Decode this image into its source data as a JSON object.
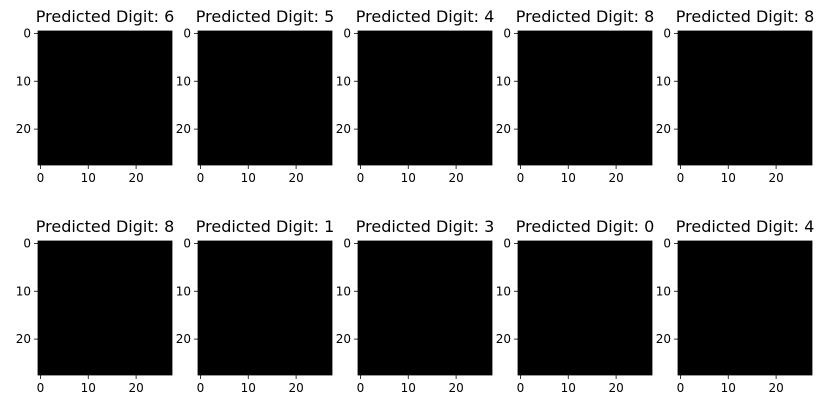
{
  "figure": {
    "background": "#ffffff",
    "image_background": "#000000",
    "digit_color": "#ffffff"
  },
  "chart_data": [
    {
      "type": "heatmap",
      "colormap": "gray",
      "image_size": [
        28,
        28
      ],
      "title": "Predicted Digit: 6",
      "prediction": 6,
      "xticks": [
        "0",
        "10",
        "20"
      ],
      "yticks": [
        "0",
        "10",
        "20"
      ],
      "xlim": [
        -0.5,
        27.5
      ],
      "ylim": [
        27.5,
        -0.5
      ]
    },
    {
      "type": "heatmap",
      "colormap": "gray",
      "image_size": [
        28,
        28
      ],
      "title": "Predicted Digit: 5",
      "prediction": 5,
      "xticks": [
        "0",
        "10",
        "20"
      ],
      "yticks": [
        "0",
        "10",
        "20"
      ],
      "xlim": [
        -0.5,
        27.5
      ],
      "ylim": [
        27.5,
        -0.5
      ]
    },
    {
      "type": "heatmap",
      "colormap": "gray",
      "image_size": [
        28,
        28
      ],
      "title": "Predicted Digit: 4",
      "prediction": 4,
      "xticks": [
        "0",
        "10",
        "20"
      ],
      "yticks": [
        "0",
        "10",
        "20"
      ],
      "xlim": [
        -0.5,
        27.5
      ],
      "ylim": [
        27.5,
        -0.5
      ]
    },
    {
      "type": "heatmap",
      "colormap": "gray",
      "image_size": [
        28,
        28
      ],
      "title": "Predicted Digit: 8",
      "prediction": 8,
      "xticks": [
        "0",
        "10",
        "20"
      ],
      "yticks": [
        "0",
        "10",
        "20"
      ],
      "xlim": [
        -0.5,
        27.5
      ],
      "ylim": [
        27.5,
        -0.5
      ]
    },
    {
      "type": "heatmap",
      "colormap": "gray",
      "image_size": [
        28,
        28
      ],
      "title": "Predicted Digit: 8",
      "prediction": 8,
      "xticks": [
        "0",
        "10",
        "20"
      ],
      "yticks": [
        "0",
        "10",
        "20"
      ],
      "xlim": [
        -0.5,
        27.5
      ],
      "ylim": [
        27.5,
        -0.5
      ]
    },
    {
      "type": "heatmap",
      "colormap": "gray",
      "image_size": [
        28,
        28
      ],
      "title": "Predicted Digit: 8",
      "prediction": 8,
      "xticks": [
        "0",
        "10",
        "20"
      ],
      "yticks": [
        "0",
        "10",
        "20"
      ],
      "xlim": [
        -0.5,
        27.5
      ],
      "ylim": [
        27.5,
        -0.5
      ]
    },
    {
      "type": "heatmap",
      "colormap": "gray",
      "image_size": [
        28,
        28
      ],
      "title": "Predicted Digit: 1",
      "prediction": 1,
      "xticks": [
        "0",
        "10",
        "20"
      ],
      "yticks": [
        "0",
        "10",
        "20"
      ],
      "xlim": [
        -0.5,
        27.5
      ],
      "ylim": [
        27.5,
        -0.5
      ]
    },
    {
      "type": "heatmap",
      "colormap": "gray",
      "image_size": [
        28,
        28
      ],
      "title": "Predicted Digit: 3",
      "prediction": 3,
      "xticks": [
        "0",
        "10",
        "20"
      ],
      "yticks": [
        "0",
        "10",
        "20"
      ],
      "xlim": [
        -0.5,
        27.5
      ],
      "ylim": [
        27.5,
        -0.5
      ]
    },
    {
      "type": "heatmap",
      "colormap": "gray",
      "image_size": [
        28,
        28
      ],
      "title": "Predicted Digit: 0",
      "prediction": 0,
      "xticks": [
        "0",
        "10",
        "20"
      ],
      "yticks": [
        "0",
        "10",
        "20"
      ],
      "xlim": [
        -0.5,
        27.5
      ],
      "ylim": [
        27.5,
        -0.5
      ]
    },
    {
      "type": "heatmap",
      "colormap": "gray",
      "image_size": [
        28,
        28
      ],
      "title": "Predicted Digit: 4",
      "prediction": 4,
      "xticks": [
        "0",
        "10",
        "20"
      ],
      "yticks": [
        "0",
        "10",
        "20"
      ],
      "xlim": [
        -0.5,
        27.5
      ],
      "ylim": [
        27.5,
        -0.5
      ]
    }
  ]
}
